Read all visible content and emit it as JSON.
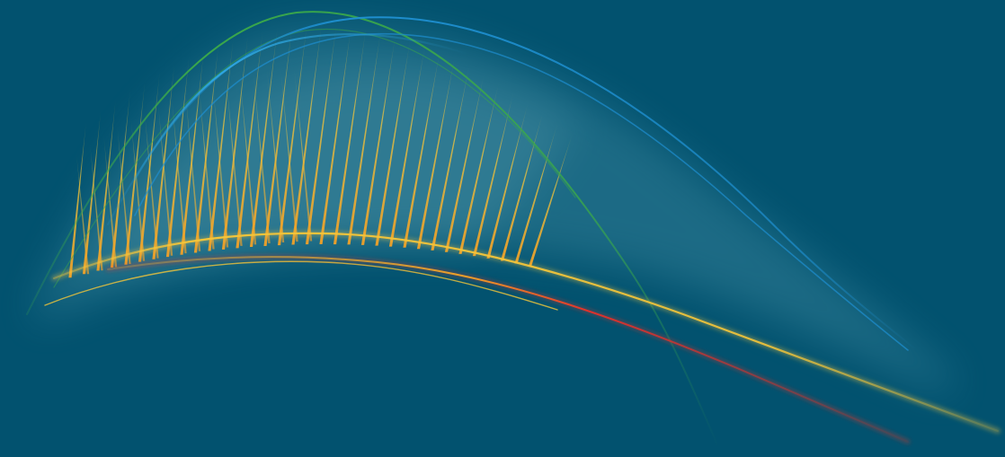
{
  "artwork": {
    "kind": "abstract-curves",
    "background_color": "#02526f",
    "glow_color": "#6fb3c4",
    "strand_colors": {
      "yellow": "#f3c53a",
      "orange": "#f0a028",
      "green": "#3aa84a",
      "blue": "#1e8fd0",
      "light_blue": "#2ea6e0",
      "red": "#e0312c"
    }
  }
}
